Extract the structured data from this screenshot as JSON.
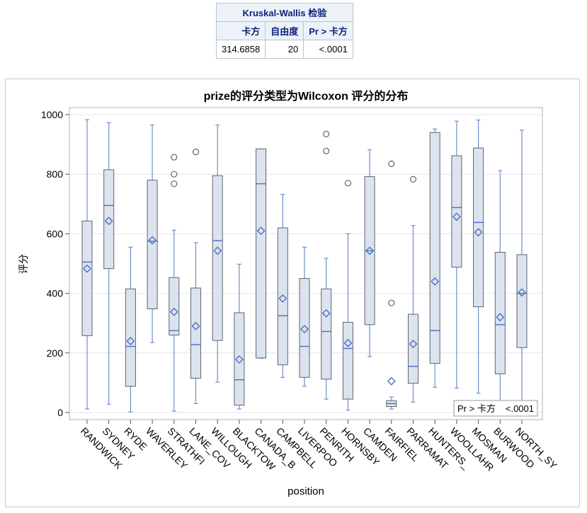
{
  "table": {
    "title": "Kruskal-Wallis 检验",
    "headers": [
      "卡方",
      "自由度",
      "Pr > 卡方"
    ],
    "values": [
      "314.6858",
      "20",
      "<.0001"
    ]
  },
  "colors": {
    "box_fill": "#dce3ee",
    "box_edge": "#5b6670",
    "whisker": "#6f8fc9",
    "mean_marker": "#4a6fc4",
    "outlier": "#666666",
    "grid": "#e6e6e6",
    "table_header_bg": "#edf2f9",
    "table_header_text": "#112277"
  },
  "inset": {
    "label": "Pr > 卡方",
    "value": "<.0001"
  },
  "chart_data": {
    "type": "box",
    "title": "prize的评分类型为Wilcoxon 评分的分布",
    "xlabel": "position",
    "ylabel": "评分",
    "ylim": [
      0,
      1000
    ],
    "yticks": [
      0,
      200,
      400,
      600,
      800,
      1000
    ],
    "grid": true,
    "categories": [
      "RANDWICK",
      "SYDNEY",
      "RYDE",
      "WAVERLEY",
      "STRATHFI",
      "LANE_COV",
      "WILLOUGH",
      "BLACKTOW",
      "CANADA_B",
      "CAMPBELL",
      "LIVERPOO",
      "PENRITH",
      "HORNSBY",
      "CAMDEN",
      "FAIRFIEL",
      "PARRAMAT",
      "HUNTERS_",
      "WOOLLAHR",
      "MOSMAN",
      "BURWOOD",
      "NORTH_SY"
    ],
    "boxes": [
      {
        "whisker_low": 12,
        "q1": 258,
        "median": 505,
        "q3": 643,
        "whisker_high": 983,
        "mean": 483,
        "outliers": []
      },
      {
        "whisker_low": 28,
        "q1": 483,
        "median": 695,
        "q3": 815,
        "whisker_high": 973,
        "mean": 643,
        "outliers": []
      },
      {
        "whisker_low": 2,
        "q1": 88,
        "median": 222,
        "q3": 415,
        "whisker_high": 555,
        "mean": 240,
        "outliers": []
      },
      {
        "whisker_low": 235,
        "q1": 348,
        "median": 575,
        "q3": 780,
        "whisker_high": 965,
        "mean": 578,
        "outliers": []
      },
      {
        "whisker_low": 5,
        "q1": 260,
        "median": 275,
        "q3": 453,
        "whisker_high": 612,
        "mean": 338,
        "outliers": [
          768,
          800,
          857
        ]
      },
      {
        "whisker_low": 30,
        "q1": 115,
        "median": 228,
        "q3": 418,
        "whisker_high": 570,
        "mean": 290,
        "outliers": [
          875
        ]
      },
      {
        "whisker_low": 102,
        "q1": 242,
        "median": 577,
        "q3": 795,
        "whisker_high": 965,
        "mean": 543,
        "outliers": []
      },
      {
        "whisker_low": 12,
        "q1": 25,
        "median": 110,
        "q3": 335,
        "whisker_high": 498,
        "mean": 178,
        "outliers": []
      },
      {
        "whisker_low": 182,
        "q1": 183,
        "median": 768,
        "q3": 885,
        "whisker_high": 885,
        "mean": 610,
        "outliers": []
      },
      {
        "whisker_low": 118,
        "q1": 160,
        "median": 325,
        "q3": 620,
        "whisker_high": 732,
        "mean": 383,
        "outliers": []
      },
      {
        "whisker_low": 88,
        "q1": 118,
        "median": 222,
        "q3": 450,
        "whisker_high": 555,
        "mean": 280,
        "outliers": []
      },
      {
        "whisker_low": 45,
        "q1": 112,
        "median": 272,
        "q3": 415,
        "whisker_high": 518,
        "mean": 333,
        "outliers": [
          878,
          935
        ]
      },
      {
        "whisker_low": 8,
        "q1": 45,
        "median": 215,
        "q3": 303,
        "whisker_high": 600,
        "mean": 233,
        "outliers": [
          770
        ]
      },
      {
        "whisker_low": 188,
        "q1": 295,
        "median": 543,
        "q3": 792,
        "whisker_high": 882,
        "mean": 543,
        "outliers": []
      },
      {
        "whisker_low": 12,
        "q1": 20,
        "median": 30,
        "q3": 40,
        "whisker_high": 52,
        "mean": 105,
        "outliers": [
          368,
          835
        ]
      },
      {
        "whisker_low": 35,
        "q1": 98,
        "median": 155,
        "q3": 330,
        "whisker_high": 628,
        "mean": 230,
        "outliers": [
          783
        ]
      },
      {
        "whisker_low": 85,
        "q1": 165,
        "median": 275,
        "q3": 940,
        "whisker_high": 952,
        "mean": 440,
        "outliers": []
      },
      {
        "whisker_low": 82,
        "q1": 488,
        "median": 688,
        "q3": 862,
        "whisker_high": 978,
        "mean": 657,
        "outliers": []
      },
      {
        "whisker_low": 65,
        "q1": 355,
        "median": 638,
        "q3": 888,
        "whisker_high": 982,
        "mean": 605,
        "outliers": []
      },
      {
        "whisker_low": 32,
        "q1": 130,
        "median": 295,
        "q3": 538,
        "whisker_high": 812,
        "mean": 320,
        "outliers": []
      },
      {
        "whisker_low": 32,
        "q1": 218,
        "median": 400,
        "q3": 530,
        "whisker_high": 948,
        "mean": 403,
        "outliers": []
      }
    ]
  }
}
